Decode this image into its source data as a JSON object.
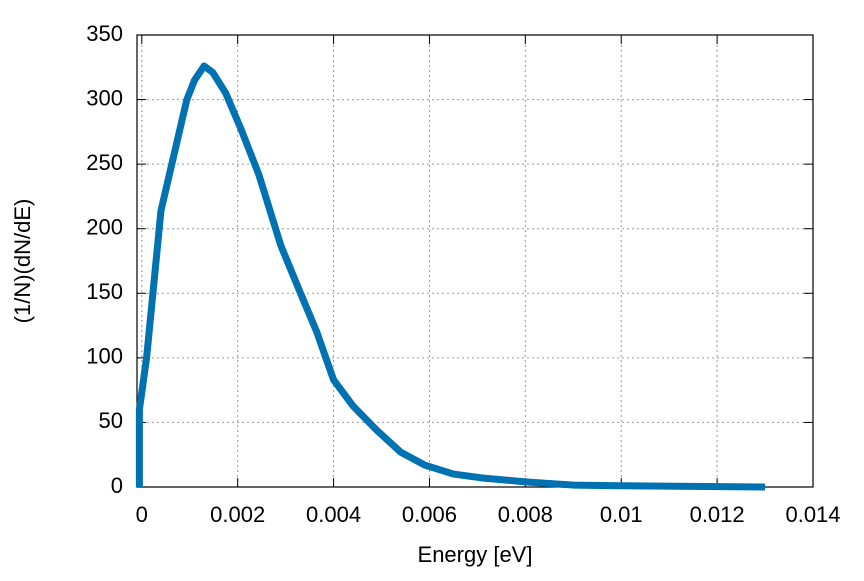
{
  "chart_data": {
    "type": "line",
    "xlabel": "Energy [eV]",
    "ylabel": "(1/N)(dN/dE)",
    "series": [
      {
        "color": "#0072b2",
        "x": [
          -5e-05,
          -5e-05,
          0.0001,
          0.0004,
          0.00077,
          0.00094,
          0.0011,
          0.0013,
          0.00148,
          0.00175,
          0.00206,
          0.00244,
          0.0029,
          0.0033,
          0.00365,
          0.004,
          0.0044,
          0.0049,
          0.0054,
          0.0059,
          0.0065,
          0.0071,
          0.008,
          0.009,
          0.01,
          0.013
        ],
        "values": [
          0,
          60,
          100,
          214,
          273,
          300,
          315,
          326,
          321,
          305,
          278,
          242,
          187,
          151,
          120,
          83,
          63,
          44,
          27,
          17,
          10,
          7,
          4,
          1.5,
          1,
          0
        ]
      }
    ],
    "xlim": [
      -0.0001,
      0.014
    ],
    "ylim": [
      0,
      350
    ],
    "xticks": [
      0,
      0.002,
      0.004,
      0.006,
      0.008,
      0.01,
      0.012,
      0.014
    ],
    "yticks": [
      0,
      50,
      100,
      150,
      200,
      250,
      300,
      350
    ],
    "grid": true
  }
}
